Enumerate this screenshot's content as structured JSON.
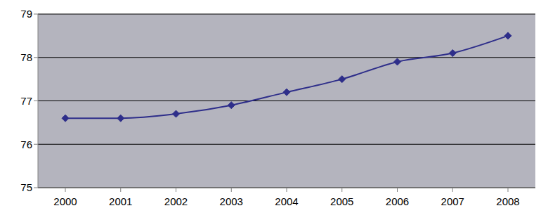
{
  "chart_data": {
    "type": "line",
    "categories": [
      "2000",
      "2001",
      "2002",
      "2003",
      "2004",
      "2005",
      "2006",
      "2007",
      "2008"
    ],
    "values": [
      76.6,
      76.6,
      76.7,
      76.9,
      77.2,
      77.5,
      77.9,
      78.1,
      78.5
    ],
    "color": "#2e2e8a",
    "marker": "diamond",
    "ylim": [
      75,
      79
    ],
    "yticks": [
      75,
      76,
      77,
      78,
      79
    ],
    "grid": true
  }
}
